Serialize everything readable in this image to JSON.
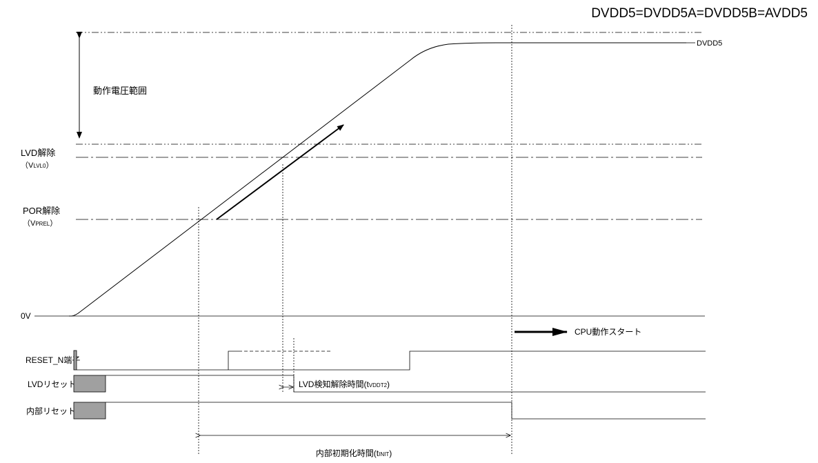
{
  "header": {
    "supply_equation": "DVDD5=DVDD5A=DVDD5B=AVDD5"
  },
  "voltage_labels": {
    "dvdd5": "DVDD5",
    "operating_range": "動作電圧範囲",
    "lvd_release": "LVD解除",
    "lvd_release_symbol_open": "（V",
    "lvd_release_symbol_sub": "LVL0",
    "lvd_release_symbol_close": "）",
    "por_release": "POR解除",
    "por_release_symbol_open": "（V",
    "por_release_symbol_sub": "PREL",
    "por_release_symbol_close": "）",
    "zero_volt": "0V"
  },
  "signals": {
    "reset_pin": "RESET_N端子",
    "lvd_reset": "LVDリセット",
    "internal_reset": "内部リセット"
  },
  "annotations": {
    "cpu_start": "CPU動作スタート",
    "lvd_detect_release_time": "LVD検知解除時間(t",
    "lvd_detect_release_time_sub": "VDDT2",
    "lvd_detect_release_time_close": ")",
    "internal_init_time": "内部初期化時間(t",
    "internal_init_time_sub": "INIT",
    "internal_init_time_close": ")"
  },
  "colors": {
    "line": "#000000",
    "fill_box": "#a0a0a0",
    "background": "#ffffff"
  }
}
